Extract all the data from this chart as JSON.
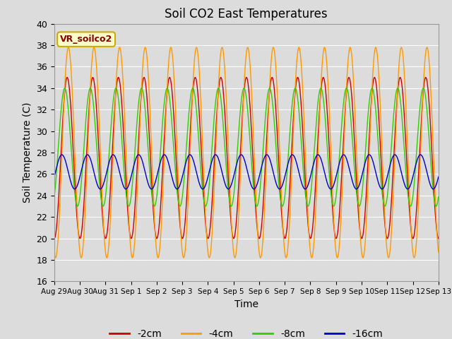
{
  "title": "Soil CO2 East Temperatures",
  "xlabel": "Time",
  "ylabel": "Soil Temperature (C)",
  "ylim": [
    16,
    40
  ],
  "background_color": "#dcdcdc",
  "plot_bg_color": "#dcdcdc",
  "grid_color": "white",
  "annotation_text": "VR_soilco2",
  "annotation_bg": "#ffffcc",
  "annotation_border": "#ccaa00",
  "colors": {
    "-2cm": "#cc0000",
    "-4cm": "#ff9900",
    "-8cm": "#33cc00",
    "-16cm": "#0000cc"
  },
  "legend_labels": [
    "-2cm",
    "-4cm",
    "-8cm",
    "-16cm"
  ],
  "xtick_labels": [
    "Aug 29",
    "Aug 30",
    "Aug 31",
    "Sep 1",
    "Sep 2",
    "Sep 3",
    "Sep 4",
    "Sep 5",
    "Sep 6",
    "Sep 7",
    "Sep 8",
    "Sep 9",
    "Sep 10",
    "Sep 11",
    "Sep 12",
    "Sep 13"
  ],
  "xtick_positions": [
    0,
    1,
    2,
    3,
    4,
    5,
    6,
    7,
    8,
    9,
    10,
    11,
    12,
    13,
    14,
    15
  ],
  "period_days": 1.0,
  "num_points": 2000,
  "total_days": 15.0,
  "depth_params": {
    "-2cm": {
      "mean": 27.5,
      "amp": 7.5,
      "phase": -1.6
    },
    "-4cm": {
      "mean": 28.0,
      "amp": 9.8,
      "phase": -1.9
    },
    "-8cm": {
      "mean": 28.5,
      "amp": 5.5,
      "phase": -1.0
    },
    "-16cm": {
      "mean": 26.2,
      "amp": 1.6,
      "phase": -0.3
    }
  }
}
